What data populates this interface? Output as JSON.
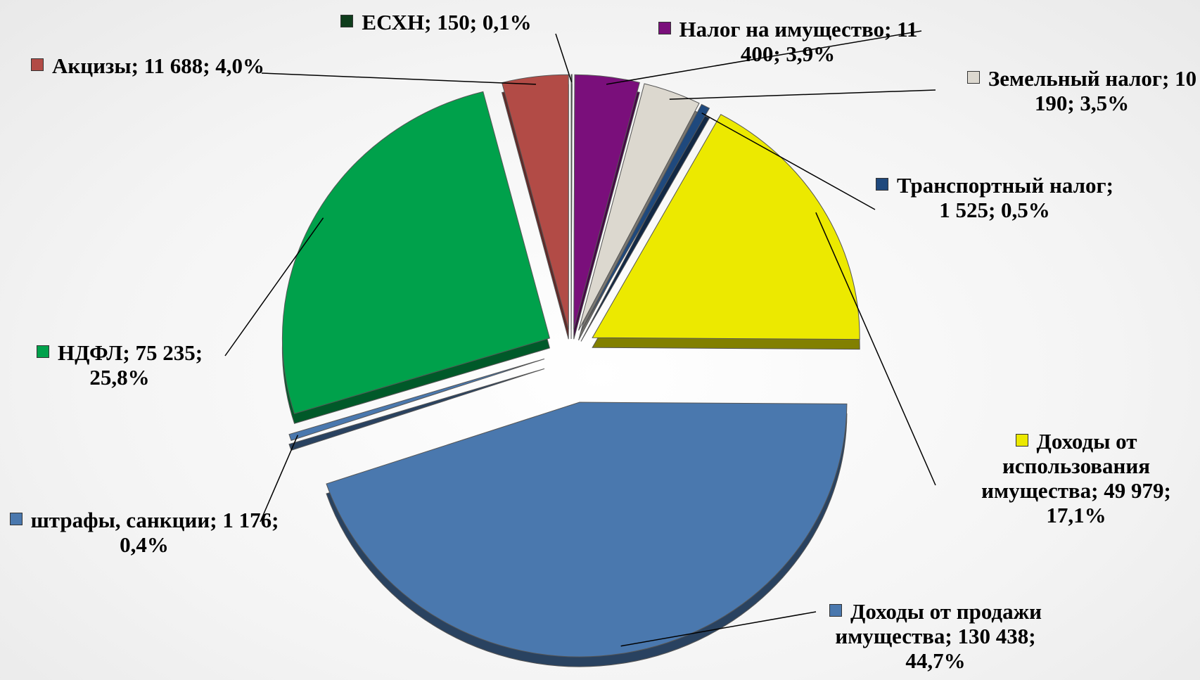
{
  "chart_data": {
    "type": "pie",
    "label_separator": "; ",
    "categories": [
      "ЕСХН",
      "Налог на имущество",
      "Земельный налог",
      "Транспортный налог",
      "Доходы от использования имущества",
      "Доходы от продажи имущества",
      "штрафы, санкции",
      "НДФЛ",
      "Акцизы"
    ],
    "values": [
      150,
      11400,
      10190,
      1525,
      49979,
      130438,
      1176,
      75235,
      11688
    ],
    "value_labels": [
      "150",
      "11 400",
      "10 190",
      "1 525",
      "49 979",
      "130 438",
      "1 176",
      "75 235",
      "11 688"
    ],
    "percents": [
      0.1,
      3.9,
      3.5,
      0.5,
      17.1,
      44.7,
      0.4,
      25.8,
      4.0
    ],
    "percent_labels": [
      "0,1%",
      "3,9%",
      "3,5%",
      "0,5%",
      "17,1%",
      "44,7%",
      "0,4%",
      "25,8%",
      "4,0%"
    ],
    "colors": [
      "#0f3d1c",
      "#7a0f7b",
      "#dcd8cf",
      "#1f497d",
      "#ece900",
      "#4a78ae",
      "#4a78ae",
      "#00a14b",
      "#b24b46"
    ]
  }
}
